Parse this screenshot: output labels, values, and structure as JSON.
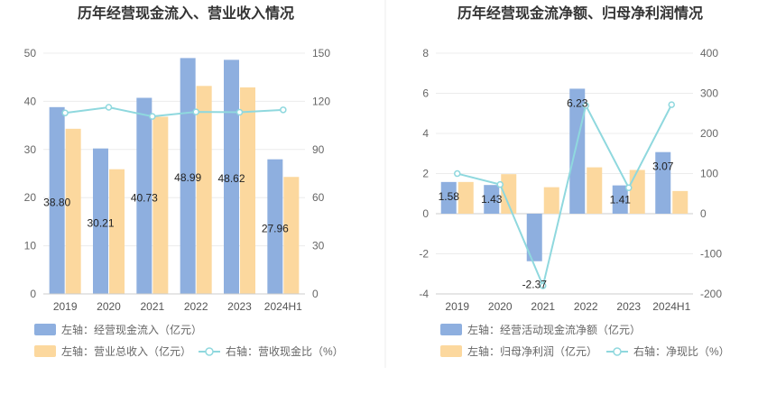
{
  "chart_data": [
    {
      "type": "bar+line",
      "title": "历年经营现金流入、营业收入情况",
      "categories": [
        "2019",
        "2020",
        "2021",
        "2022",
        "2023",
        "2024H1"
      ],
      "y_left": {
        "min": 0,
        "max": 50,
        "ticks": [
          "0",
          "10",
          "20",
          "30",
          "40",
          "50"
        ]
      },
      "y_right": {
        "min": 0,
        "max": 150,
        "ticks": [
          "0",
          "30",
          "60",
          "90",
          "120",
          "150"
        ]
      },
      "series": [
        {
          "name": "左轴：经营现金流入（亿元）",
          "axis": "left",
          "kind": "bar",
          "color": "#8eafdf",
          "values": [
            38.8,
            30.21,
            40.73,
            48.99,
            48.62,
            27.96
          ],
          "labels": [
            "38.80",
            "30.21",
            "40.73",
            "48.99",
            "48.62",
            "27.96"
          ]
        },
        {
          "name": "左轴：营业总收入（亿元）",
          "axis": "left",
          "kind": "bar",
          "color": "#fcd89e",
          "values": [
            34.3,
            25.9,
            36.8,
            43.2,
            42.9,
            24.3
          ]
        },
        {
          "name": "右轴：营收现金比（%）",
          "axis": "right",
          "kind": "line",
          "color": "#8fd8de",
          "values": [
            112.8,
            116.3,
            110.6,
            113.4,
            113.2,
            114.7
          ]
        }
      ],
      "legend": [
        "左轴：经营现金流入（亿元）",
        "左轴：营业总收入（亿元）",
        "右轴：营收现金比（%）"
      ]
    },
    {
      "type": "bar+line",
      "title": "历年经营现金流净额、归母净利润情况",
      "categories": [
        "2019",
        "2020",
        "2021",
        "2022",
        "2023",
        "2024H1"
      ],
      "y_left": {
        "min": -4,
        "max": 8,
        "ticks": [
          "-4",
          "-2",
          "0",
          "2",
          "4",
          "6",
          "8"
        ]
      },
      "y_right": {
        "min": -200,
        "max": 400,
        "ticks": [
          "-200",
          "-100",
          "0",
          "100",
          "200",
          "300",
          "400"
        ]
      },
      "series": [
        {
          "name": "左轴：经营活动现金流净额（亿元）",
          "axis": "left",
          "kind": "bar",
          "color": "#8eafdf",
          "values": [
            1.58,
            1.43,
            -2.37,
            6.23,
            1.41,
            3.07
          ],
          "labels": [
            "1.58",
            "1.43",
            "-2.37",
            "6.23",
            "1.41",
            "3.07"
          ]
        },
        {
          "name": "左轴：归母净利润（亿元）",
          "axis": "left",
          "kind": "bar",
          "color": "#fcd89e",
          "values": [
            1.58,
            1.97,
            1.32,
            2.31,
            2.18,
            1.13
          ]
        },
        {
          "name": "右轴：净现比（%）",
          "axis": "right",
          "kind": "line",
          "color": "#8fd8de",
          "values": [
            99.9,
            72.7,
            -179.7,
            269.7,
            64.6,
            271.7
          ]
        }
      ],
      "legend": [
        "左轴：经营活动现金流净额（亿元）",
        "左轴：归母净利润（亿元）",
        "右轴：净现比（%）"
      ]
    }
  ]
}
